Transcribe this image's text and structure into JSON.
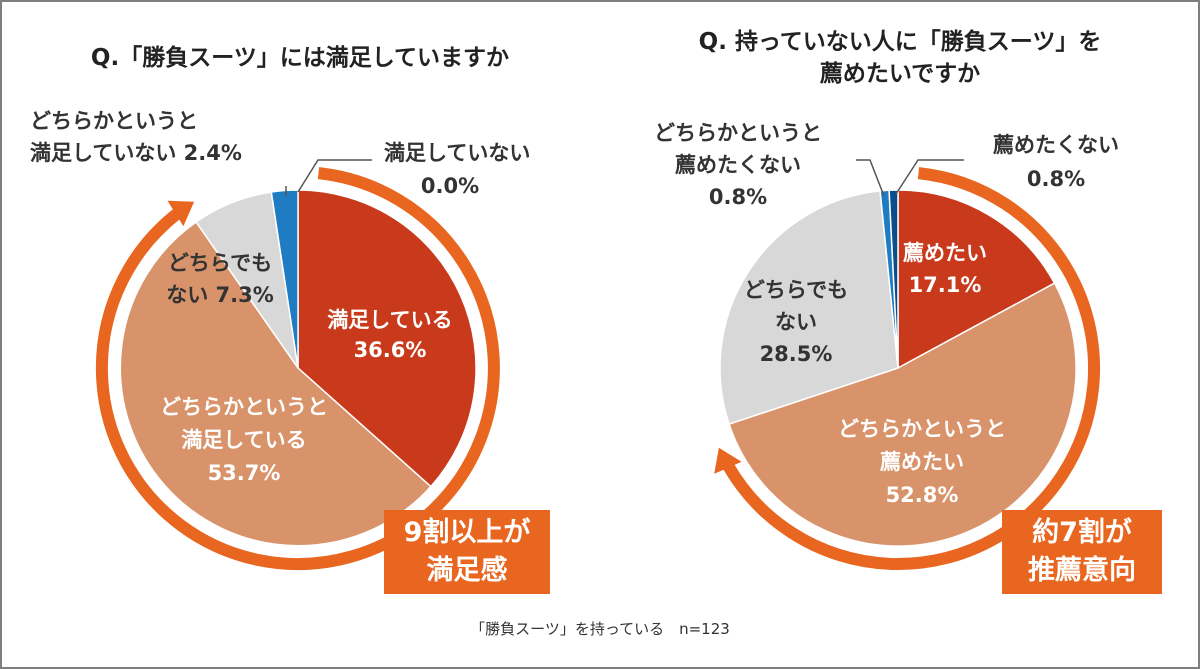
{
  "colors": {
    "dark_orange": "#c83a1b",
    "light_orange": "#d9936a",
    "gray": "#d8d8d8",
    "blue": "#1f7cc3",
    "dark_blue": "#0b4e8a",
    "arrow": "#e8661f",
    "text": "#333333"
  },
  "chart_data": [
    {
      "type": "pie",
      "title": "Q.「勝負スーツ」には満足していますか",
      "slices": [
        {
          "label": "満足している",
          "value": 36.6,
          "display": "36.6%"
        },
        {
          "label": "どちらかというと満足している",
          "value": 53.7,
          "display": "53.7%"
        },
        {
          "label": "どちらでもない",
          "value": 7.3,
          "display": "7.3%"
        },
        {
          "label": "どちらかというと満足していない",
          "value": 2.4,
          "display": "2.4%"
        },
        {
          "label": "満足していない",
          "value": 0.0,
          "display": "0.0%"
        }
      ],
      "callout": [
        "9割以上が",
        "満足感"
      ]
    },
    {
      "type": "pie",
      "title": "Q. 持っていない人に「勝負スーツ」を薦めたいですか",
      "slices": [
        {
          "label": "薦めたい",
          "value": 17.1,
          "display": "17.1%"
        },
        {
          "label": "どちらかというと薦めたい",
          "value": 52.8,
          "display": "52.8%"
        },
        {
          "label": "どちらでもない",
          "value": 28.5,
          "display": "28.5%"
        },
        {
          "label": "どちらかというと薦めたくない",
          "value": 0.8,
          "display": "0.8%"
        },
        {
          "label": "薦めたくない",
          "value": 0.8,
          "display": "0.8%"
        }
      ],
      "callout": [
        "約7割が",
        "推薦意向"
      ]
    }
  ],
  "titles": {
    "left": "Q.「勝負スーツ」には満足していますか",
    "right_line1": "Q. 持っていない人に「勝負スーツ」を",
    "right_line2": "薦めたいですか"
  },
  "labels": {
    "left": {
      "satisfied_1": "満足している",
      "satisfied_2": "36.6%",
      "some_sat_1": "どちらかというと",
      "some_sat_2": "満足している",
      "some_sat_3": "53.7%",
      "neither_1": "どちらでも",
      "neither_2": "ない 7.3%",
      "some_unsat_1": "どちらかというと",
      "some_unsat_2": "満足していない 2.4%",
      "unsat_1": "満足していない",
      "unsat_2": "0.0%"
    },
    "right": {
      "rec_1": "薦めたい",
      "rec_2": "17.1%",
      "some_rec_1": "どちらかというと",
      "some_rec_2": "薦めたい",
      "some_rec_3": "52.8%",
      "neither_1": "どちらでも",
      "neither_2": "ない",
      "neither_3": "28.5%",
      "some_norec_1": "どちらかというと",
      "some_norec_2": "薦めたくない",
      "some_norec_3": "0.8%",
      "norec_1": "薦めたくない",
      "norec_2": "0.8%"
    }
  },
  "callouts": {
    "left_1": "9割以上が",
    "left_2": "満足感",
    "right_1": "約7割が",
    "right_2": "推薦意向"
  },
  "footnote": "「勝負スーツ」を持っている　n=123"
}
